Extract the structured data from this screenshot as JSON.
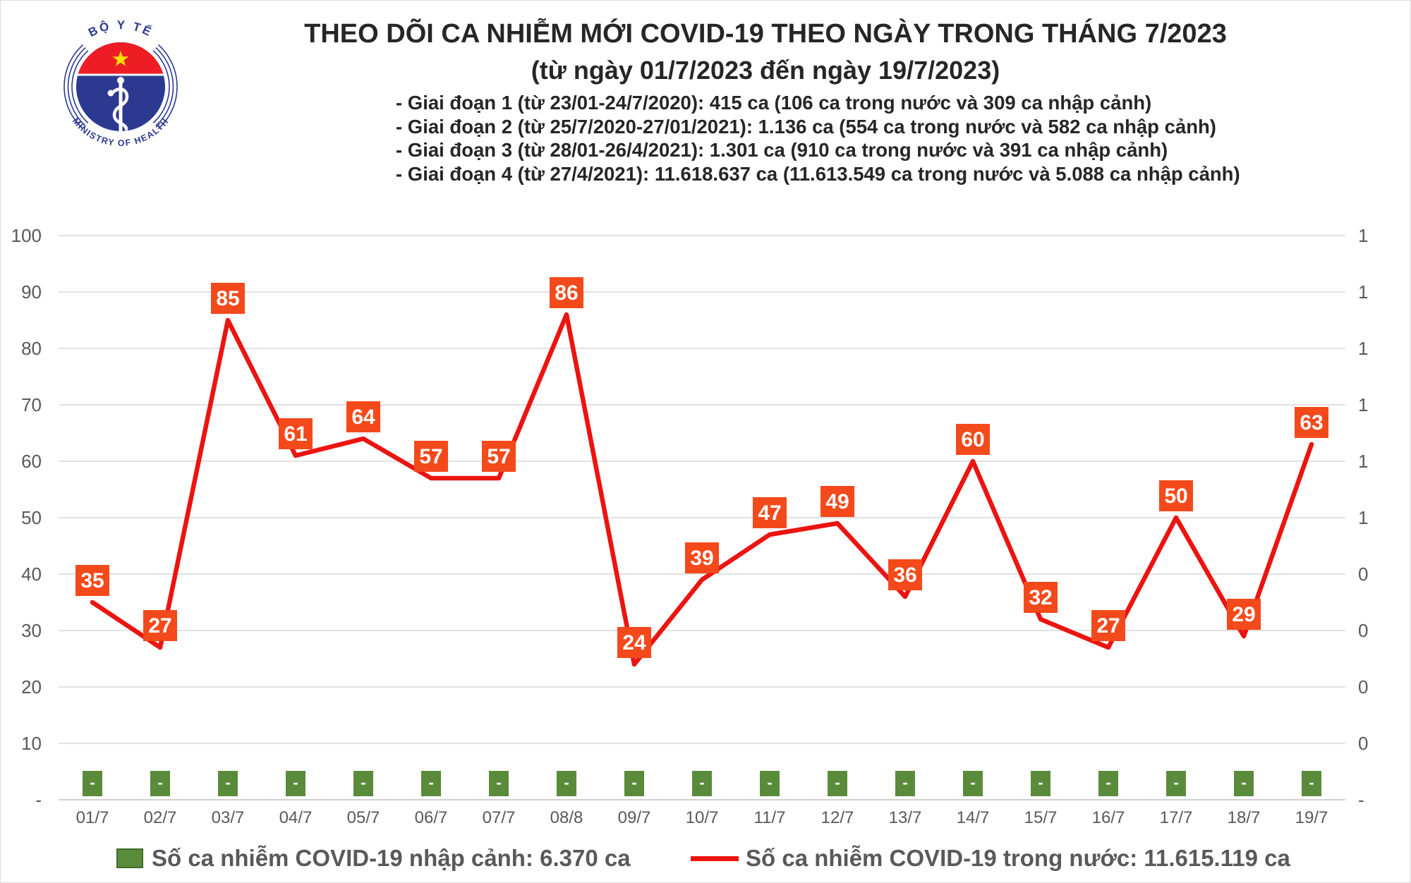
{
  "logo": {
    "top_text": "BỘ Y TẾ",
    "bottom_text": "MINISTRY OF HEALTH",
    "blue": "#2b3990",
    "red": "#ee1c25",
    "star_yellow": "#ffde00"
  },
  "chart_data": {
    "type": "line",
    "title": "THEO DÕI CA NHIỄM MỚI COVID-19 THEO NGÀY TRONG THÁNG 7/2023",
    "subtitle": "(từ ngày 01/7/2023 đến ngày 19/7/2023)",
    "annotations": [
      "- Giai đoạn 1 (từ 23/01-24/7/2020): 415 ca (106 ca trong nước và 309 ca nhập cảnh)",
      "- Giai đoạn 2 (từ 25/7/2020-27/01/2021): 1.136 ca (554 ca trong nước và 582 ca nhập cảnh)",
      "- Giai đoạn 3 (từ 28/01-26/4/2021): 1.301 ca (910 ca trong nước và 391 ca nhập cảnh)",
      "- Giai đoạn 4 (từ 27/4/2021): 11.618.637 ca (11.613.549 ca trong nước và 5.088 ca nhập cảnh)"
    ],
    "categories": [
      "01/7",
      "02/7",
      "03/7",
      "04/7",
      "05/7",
      "06/7",
      "07/7",
      "08/8",
      "09/7",
      "10/7",
      "11/7",
      "12/7",
      "13/7",
      "14/7",
      "15/7",
      "16/7",
      "17/7",
      "18/7",
      "19/7"
    ],
    "series": [
      {
        "name": "Số ca nhiễm COVID-19 trong nước",
        "type": "line",
        "color": "#eb1410",
        "label_box_color": "#f4491b",
        "label_text_color": "#ffffff",
        "values": [
          35,
          27,
          85,
          61,
          64,
          57,
          57,
          86,
          24,
          39,
          47,
          49,
          36,
          60,
          32,
          27,
          50,
          29,
          63
        ]
      },
      {
        "name": "Số ca nhiễm COVID-19 nhập cảnh",
        "type": "bar",
        "color": "#5a8b3b",
        "zero_label": "-",
        "values": [
          0,
          0,
          0,
          0,
          0,
          0,
          0,
          0,
          0,
          0,
          0,
          0,
          0,
          0,
          0,
          0,
          0,
          0,
          0
        ]
      }
    ],
    "left_axis_ticks": [
      "100",
      "90",
      "80",
      "70",
      "60",
      "50",
      "40",
      "30",
      "20",
      "10",
      "-"
    ],
    "right_axis_ticks": [
      "1",
      "1",
      "1",
      "1",
      "1",
      "1",
      "0",
      "0",
      "0",
      "0",
      "-"
    ],
    "ylim": [
      0,
      100
    ],
    "grid": true,
    "legend_position": "bottom"
  },
  "legend": {
    "items": [
      {
        "label": "Số ca nhiễm COVID-19 nhập cảnh: 6.370 ca"
      },
      {
        "label": "Số ca nhiễm COVID-19 trong nước: 11.615.119 ca"
      }
    ]
  },
  "colors": {
    "grid": "#d9d9d9",
    "baseline": "#bfbfbf",
    "axis_text": "#595959",
    "title_text": "#262626"
  }
}
